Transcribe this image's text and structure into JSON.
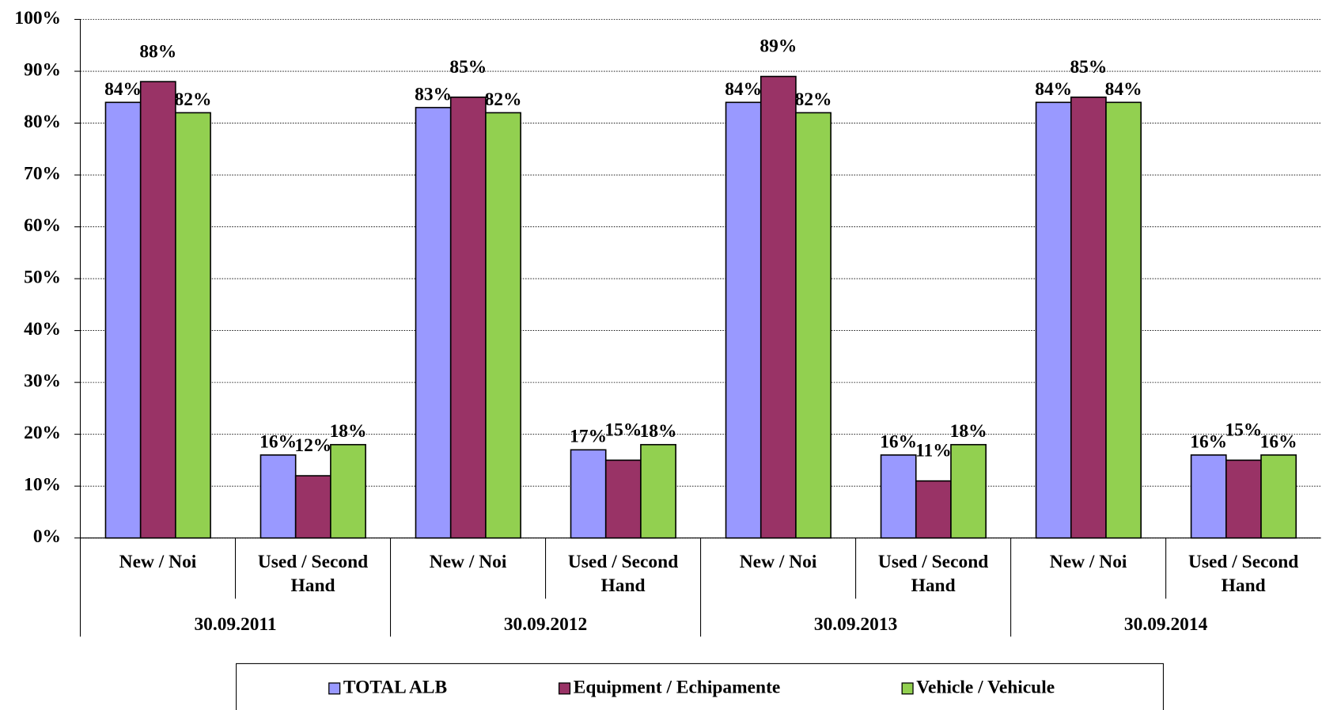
{
  "chart_data": {
    "type": "bar",
    "categories": [
      "New / Noi",
      "Used / Second Hand",
      "New / Noi",
      "Used / Second Hand",
      "New / Noi",
      "Used / Second Hand",
      "New / Noi",
      "Used / Second Hand"
    ],
    "groups": [
      "30.09.2011",
      "30.09.2012",
      "30.09.2013",
      "30.09.2014"
    ],
    "series": [
      {
        "name": "TOTAL ALB",
        "color": "#9999ff",
        "values": [
          84,
          16,
          83,
          17,
          84,
          16,
          84,
          16
        ],
        "value_labels": [
          "84%",
          "16%",
          "83%",
          "17%",
          "84%",
          "16%",
          "84%",
          "16%"
        ]
      },
      {
        "name": "Equipment / Echipamente",
        "color": "#993366",
        "values": [
          88,
          12,
          85,
          15,
          89,
          11,
          85,
          15
        ],
        "value_labels": [
          "88%",
          "12%",
          "85%",
          "15%",
          "89%",
          "11%",
          "85%",
          "15%"
        ]
      },
      {
        "name": "Vehicle / Vehicule",
        "color": "#92d050",
        "values": [
          82,
          18,
          82,
          18,
          82,
          18,
          84,
          16
        ],
        "value_labels": [
          "82%",
          "18%",
          "82%",
          "18%",
          "82%",
          "18%",
          "84%",
          "16%"
        ]
      }
    ],
    "ylim": [
      0,
      100
    ],
    "yticks": [
      {
        "value": 0,
        "label": "0%"
      },
      {
        "value": 10,
        "label": "10%"
      },
      {
        "value": 20,
        "label": "20%"
      },
      {
        "value": 30,
        "label": "30%"
      },
      {
        "value": 40,
        "label": "40%"
      },
      {
        "value": 50,
        "label": "50%"
      },
      {
        "value": 60,
        "label": "60%"
      },
      {
        "value": 70,
        "label": "70%"
      },
      {
        "value": 80,
        "label": "80%"
      },
      {
        "value": 90,
        "label": "90%"
      },
      {
        "value": 100,
        "label": "100%"
      }
    ],
    "grid": true,
    "legend": "bottom"
  }
}
